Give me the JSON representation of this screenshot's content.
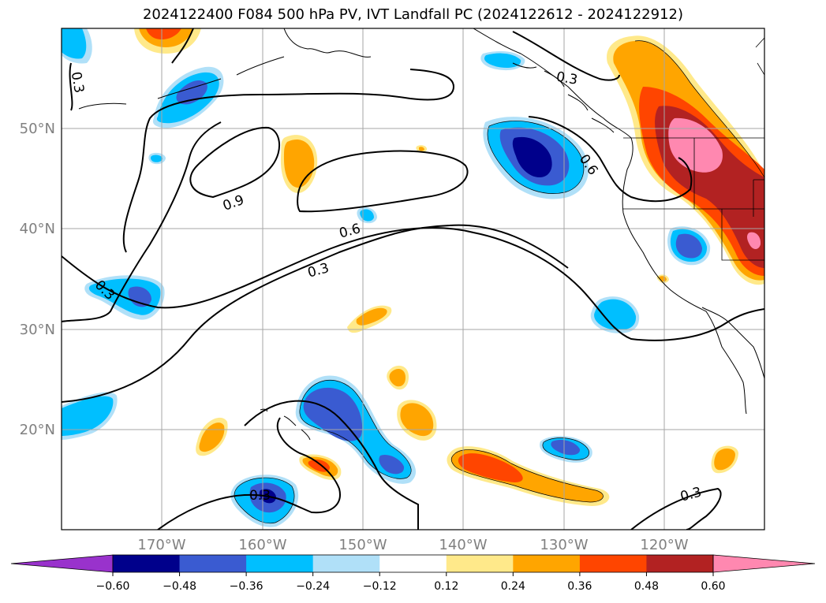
{
  "title": "2024122400 F084 500 hPa PV, IVT Landfall PC (2024122612 - 2024122912)",
  "lon_ticks": [
    "170°W",
    "160°W",
    "150°W",
    "140°W",
    "130°W",
    "120°W"
  ],
  "lat_ticks": [
    "50°N",
    "40°N",
    "30°N",
    "20°N"
  ],
  "contour_labels": [
    "0.3",
    "0.3",
    "0.3",
    "0.3",
    "0.3",
    "0.6",
    "0.6",
    "0.9",
    "0.3"
  ],
  "colorbar": {
    "tick_labels": [
      "−0.60",
      "−0.48",
      "−0.36",
      "−0.24",
      "−0.12",
      "0.12",
      "0.24",
      "0.36",
      "0.48",
      "0.60"
    ],
    "colors": [
      "#9932cc",
      "#00008b",
      "#3a5bd1",
      "#00bfff",
      "#b0e0f8",
      "#ffffff",
      "#ffe98a",
      "#ffa500",
      "#ff4500",
      "#b22222",
      "#ff88b0"
    ]
  },
  "colors": {
    "pos_1": "#ffe98a",
    "pos_2": "#ffa500",
    "pos_3": "#ff4500",
    "pos_4": "#b22222",
    "pos_5": "#ff88b0",
    "neg_1": "#b0e0f8",
    "neg_2": "#00bfff",
    "neg_3": "#3a5bd1",
    "neg_4": "#00008b"
  }
}
